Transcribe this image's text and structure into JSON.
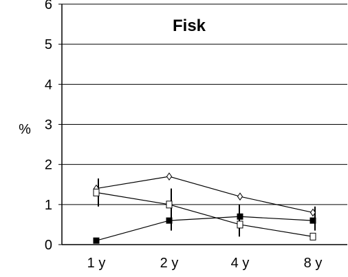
{
  "chart_data": {
    "type": "line",
    "title": "Fisk",
    "ylabel": "%",
    "xlabel": "",
    "categories": [
      "1 y",
      "2 y",
      "4 y",
      "8 y"
    ],
    "ylim": [
      0,
      6
    ],
    "yticks": [
      0,
      1,
      2,
      3,
      4,
      5,
      6
    ],
    "grid": true,
    "series": [
      {
        "marker": "diamond-open",
        "values": [
          1.4,
          1.7,
          1.2,
          0.8
        ],
        "error": [
          0,
          0,
          0,
          0
        ]
      },
      {
        "marker": "square-open",
        "values": [
          1.3,
          1.0,
          0.5,
          0.2
        ],
        "error": [
          0,
          0.4,
          0.3,
          0.2
        ]
      },
      {
        "marker": "square-filled",
        "values": [
          0.1,
          0.6,
          0.7,
          0.6
        ],
        "error": [
          0.05,
          0.25,
          0.25,
          0.3
        ]
      }
    ],
    "error_bars_extra": [
      {
        "category": "1 y",
        "low": 0.95,
        "high": 1.65
      },
      {
        "category": "2 y",
        "low": 0.35,
        "high": 1.4
      },
      {
        "category": "4 y",
        "low": 0.2,
        "high": 1.0
      },
      {
        "category": "8 y",
        "low": 0.35,
        "high": 0.95
      }
    ]
  }
}
